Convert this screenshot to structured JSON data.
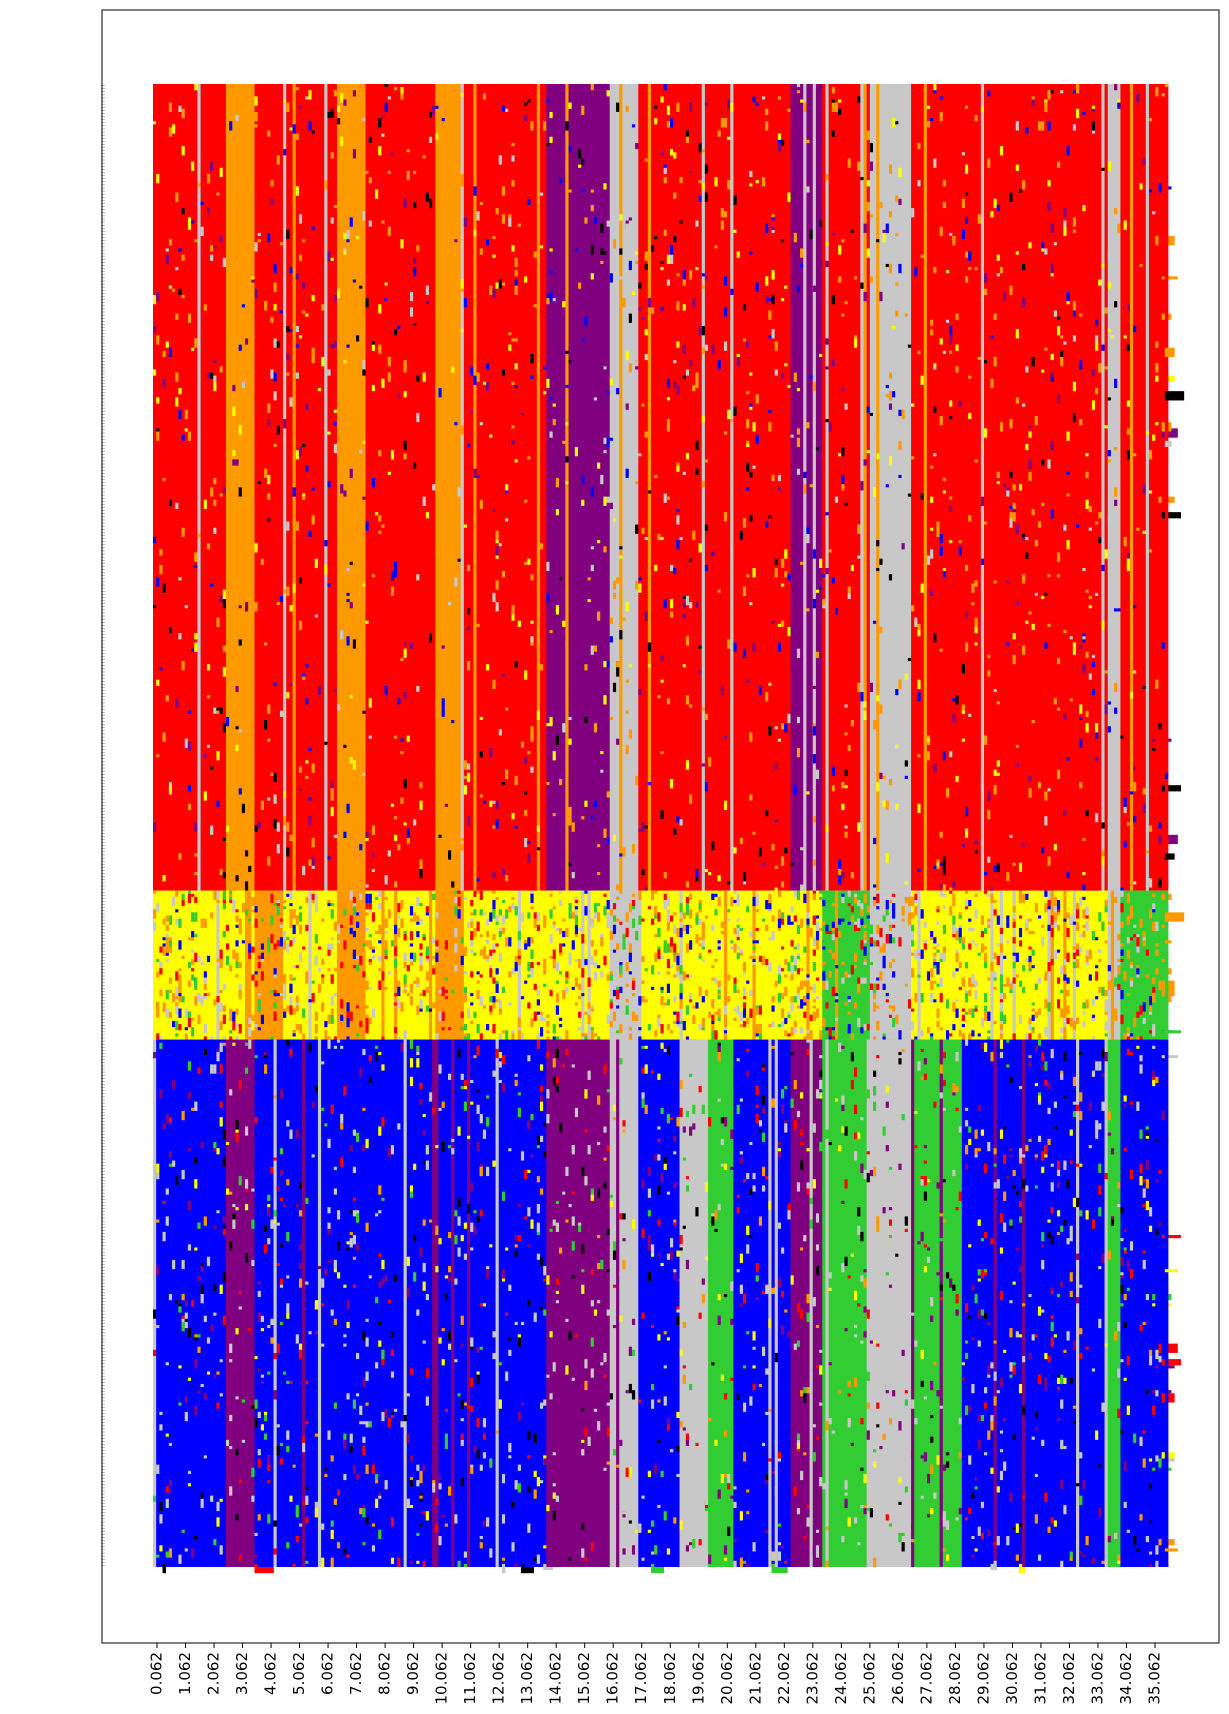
{
  "chart_data": {
    "type": "heatmap",
    "title": "",
    "xlabel": "",
    "ylabel": "",
    "grid": false,
    "legend": "none",
    "x_tick_labels": [
      "0.062",
      "1.062",
      "2.062",
      "3.062",
      "4.062",
      "5.062",
      "6.062",
      "7.062",
      "8.062",
      "9.062",
      "10.062",
      "11.062",
      "12.062",
      "13.062",
      "14.062",
      "15.062",
      "16.062",
      "17.062",
      "18.062",
      "19.062",
      "20.062",
      "21.062",
      "22.062",
      "23.062",
      "24.062",
      "25.062",
      "26.062",
      "27.062",
      "28.062",
      "29.062",
      "30.062",
      "31.062",
      "32.062",
      "33.062",
      "34.062",
      "35.062"
    ],
    "x_range": [
      0.062,
      35.062
    ],
    "row_groups": [
      {
        "dominant_state": "red",
        "approx_rows": 260
      },
      {
        "dominant_state": "yellow",
        "approx_rows": 48
      },
      {
        "dominant_state": "blue",
        "approx_rows": 170
      }
    ],
    "state_colors": {
      "red": "#ff0000",
      "orange": "#ff9900",
      "yellow": "#ffff00",
      "purple": "#800080",
      "gray": "#c8c8c8",
      "blue": "#0000ff",
      "green": "#32cd32",
      "black": "#000000"
    },
    "column_band_profiles": [
      {
        "x": [
          0.062,
          2.6
        ],
        "red": "red",
        "yellow": "yellow",
        "blue": "blue"
      },
      {
        "x": [
          2.6,
          3.6
        ],
        "red": "orange",
        "yellow": "yellow",
        "blue": "purple"
      },
      {
        "x": [
          3.6,
          4.6
        ],
        "red": "red",
        "yellow": "orange",
        "blue": "blue"
      },
      {
        "x": [
          4.6,
          6.5
        ],
        "red": "red",
        "yellow": "yellow",
        "blue": "blue"
      },
      {
        "x": [
          6.5,
          7.5
        ],
        "red": "orange",
        "yellow": "orange",
        "blue": "blue"
      },
      {
        "x": [
          7.5,
          10.0
        ],
        "red": "red",
        "yellow": "yellow",
        "blue": "blue"
      },
      {
        "x": [
          10.0,
          11.0
        ],
        "red": "orange",
        "yellow": "orange",
        "blue": "blue"
      },
      {
        "x": [
          11.0,
          13.8
        ],
        "red": "red",
        "yellow": "yellow",
        "blue": "blue"
      },
      {
        "x": [
          13.8,
          16.1
        ],
        "red": "purple",
        "yellow": "yellow",
        "blue": "purple"
      },
      {
        "x": [
          16.1,
          17.1
        ],
        "red": "gray",
        "yellow": "gray",
        "blue": "gray"
      },
      {
        "x": [
          17.1,
          18.5
        ],
        "red": "red",
        "yellow": "yellow",
        "blue": "blue"
      },
      {
        "x": [
          18.5,
          19.4
        ],
        "red": "red",
        "yellow": "yellow",
        "blue": "gray"
      },
      {
        "x": [
          19.4,
          20.4
        ],
        "red": "red",
        "yellow": "yellow",
        "blue": "green"
      },
      {
        "x": [
          20.4,
          22.4
        ],
        "red": "red",
        "yellow": "yellow",
        "blue": "blue"
      },
      {
        "x": [
          22.4,
          23.5
        ],
        "red": "purple",
        "yellow": "yellow",
        "blue": "purple"
      },
      {
        "x": [
          23.5,
          25.2
        ],
        "red": "red",
        "yellow": "green",
        "blue": "green"
      },
      {
        "x": [
          25.2,
          26.6
        ],
        "red": "gray",
        "yellow": "gray",
        "blue": "gray"
      },
      {
        "x": [
          26.6,
          28.4
        ],
        "red": "red",
        "yellow": "yellow",
        "blue": "green"
      },
      {
        "x": [
          28.4,
          30.4
        ],
        "red": "red",
        "yellow": "yellow",
        "blue": "blue"
      },
      {
        "x": [
          30.4,
          33.5
        ],
        "red": "red",
        "yellow": "yellow",
        "blue": "blue"
      },
      {
        "x": [
          33.5,
          34.0
        ],
        "red": "gray",
        "yellow": "gray",
        "blue": "green"
      },
      {
        "x": [
          34.0,
          35.6
        ],
        "red": "red",
        "yellow": "green",
        "blue": "blue"
      }
    ]
  }
}
